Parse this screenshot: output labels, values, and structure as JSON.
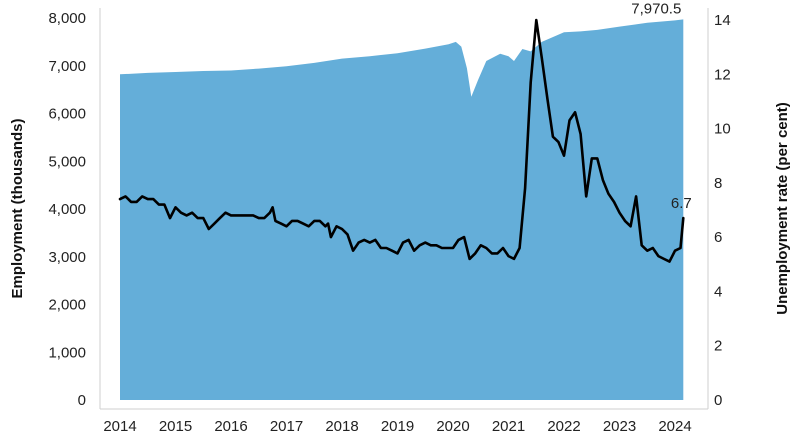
{
  "chart_data": {
    "type": "area+line",
    "title": "",
    "x_ticks": [
      "2014",
      "2015",
      "2016",
      "2017",
      "2018",
      "2019",
      "2020",
      "2021",
      "2022",
      "2023",
      "2024"
    ],
    "y_left": {
      "label": "Employment (thousands)",
      "ticks": [
        "0",
        "1,000",
        "2,000",
        "3,000",
        "4,000",
        "5,000",
        "6,000",
        "7,000",
        "8,000"
      ],
      "range": [
        0,
        8000
      ]
    },
    "y_right": {
      "label": "Unemployment rate (per cent)",
      "ticks": [
        "0",
        "2",
        "4",
        "6",
        "8",
        "10",
        "12",
        "14"
      ],
      "range": [
        0,
        14
      ]
    },
    "x_range": [
      2014.0,
      2024.25
    ],
    "series": [
      {
        "kind": "area",
        "axis": "left",
        "color": "#64aed9",
        "points": [
          [
            2014.0,
            6820
          ],
          [
            2014.5,
            6850
          ],
          [
            2015.0,
            6870
          ],
          [
            2015.5,
            6890
          ],
          [
            2016.0,
            6900
          ],
          [
            2016.5,
            6940
          ],
          [
            2017.0,
            6990
          ],
          [
            2017.5,
            7060
          ],
          [
            2018.0,
            7150
          ],
          [
            2018.5,
            7200
          ],
          [
            2019.0,
            7260
          ],
          [
            2019.5,
            7360
          ],
          [
            2019.92,
            7450
          ],
          [
            2020.05,
            7500
          ],
          [
            2020.15,
            7400
          ],
          [
            2020.25,
            6950
          ],
          [
            2020.33,
            6350
          ],
          [
            2020.45,
            6700
          ],
          [
            2020.6,
            7100
          ],
          [
            2020.85,
            7250
          ],
          [
            2021.0,
            7200
          ],
          [
            2021.1,
            7100
          ],
          [
            2021.25,
            7350
          ],
          [
            2021.4,
            7300
          ],
          [
            2021.6,
            7500
          ],
          [
            2022.0,
            7700
          ],
          [
            2022.3,
            7720
          ],
          [
            2022.6,
            7750
          ],
          [
            2023.0,
            7820
          ],
          [
            2023.5,
            7900
          ],
          [
            2024.0,
            7950
          ],
          [
            2024.15,
            7970.5
          ]
        ],
        "end_label": "7,970.5"
      },
      {
        "kind": "line",
        "axis": "right",
        "color": "#000000",
        "points": [
          [
            2014.0,
            7.4
          ],
          [
            2014.1,
            7.5
          ],
          [
            2014.2,
            7.3
          ],
          [
            2014.3,
            7.3
          ],
          [
            2014.4,
            7.5
          ],
          [
            2014.5,
            7.4
          ],
          [
            2014.6,
            7.4
          ],
          [
            2014.7,
            7.2
          ],
          [
            2014.8,
            7.2
          ],
          [
            2014.9,
            6.7
          ],
          [
            2015.0,
            7.1
          ],
          [
            2015.1,
            6.9
          ],
          [
            2015.2,
            6.8
          ],
          [
            2015.3,
            6.9
          ],
          [
            2015.4,
            6.7
          ],
          [
            2015.5,
            6.7
          ],
          [
            2015.6,
            6.3
          ],
          [
            2015.7,
            6.5
          ],
          [
            2015.8,
            6.7
          ],
          [
            2015.9,
            6.9
          ],
          [
            2016.0,
            6.8
          ],
          [
            2016.2,
            6.8
          ],
          [
            2016.4,
            6.8
          ],
          [
            2016.5,
            6.7
          ],
          [
            2016.6,
            6.7
          ],
          [
            2016.7,
            6.9
          ],
          [
            2016.75,
            7.1
          ],
          [
            2016.8,
            6.6
          ],
          [
            2016.9,
            6.5
          ],
          [
            2017.0,
            6.4
          ],
          [
            2017.1,
            6.6
          ],
          [
            2017.2,
            6.6
          ],
          [
            2017.3,
            6.5
          ],
          [
            2017.4,
            6.4
          ],
          [
            2017.5,
            6.6
          ],
          [
            2017.6,
            6.6
          ],
          [
            2017.7,
            6.4
          ],
          [
            2017.75,
            6.5
          ],
          [
            2017.8,
            6.0
          ],
          [
            2017.9,
            6.4
          ],
          [
            2018.0,
            6.3
          ],
          [
            2018.1,
            6.1
          ],
          [
            2018.2,
            5.5
          ],
          [
            2018.3,
            5.8
          ],
          [
            2018.4,
            5.9
          ],
          [
            2018.5,
            5.8
          ],
          [
            2018.6,
            5.9
          ],
          [
            2018.7,
            5.6
          ],
          [
            2018.8,
            5.6
          ],
          [
            2018.9,
            5.5
          ],
          [
            2019.0,
            5.4
          ],
          [
            2019.1,
            5.8
          ],
          [
            2019.2,
            5.9
          ],
          [
            2019.3,
            5.5
          ],
          [
            2019.4,
            5.7
          ],
          [
            2019.5,
            5.8
          ],
          [
            2019.6,
            5.7
          ],
          [
            2019.7,
            5.7
          ],
          [
            2019.8,
            5.6
          ],
          [
            2019.9,
            5.6
          ],
          [
            2020.0,
            5.6
          ],
          [
            2020.1,
            5.9
          ],
          [
            2020.2,
            6.0
          ],
          [
            2020.3,
            5.2
          ],
          [
            2020.4,
            5.4
          ],
          [
            2020.5,
            5.7
          ],
          [
            2020.6,
            5.6
          ],
          [
            2020.7,
            5.4
          ],
          [
            2020.8,
            5.4
          ],
          [
            2020.9,
            5.6
          ],
          [
            2021.0,
            5.3
          ],
          [
            2021.1,
            5.2
          ],
          [
            2021.2,
            5.6
          ],
          [
            2021.3,
            7.8
          ],
          [
            2021.4,
            11.7
          ],
          [
            2021.5,
            14.0
          ],
          [
            2021.6,
            12.6
          ],
          [
            2021.7,
            11.1
          ],
          [
            2021.8,
            9.7
          ],
          [
            2021.9,
            9.5
          ],
          [
            2022.0,
            9.0
          ],
          [
            2022.1,
            10.3
          ],
          [
            2022.2,
            10.6
          ],
          [
            2022.3,
            9.8
          ],
          [
            2022.4,
            7.5
          ],
          [
            2022.5,
            8.9
          ],
          [
            2022.6,
            8.9
          ],
          [
            2022.7,
            8.1
          ],
          [
            2022.8,
            7.6
          ],
          [
            2022.9,
            7.3
          ],
          [
            2023.0,
            6.9
          ],
          [
            2023.1,
            6.6
          ],
          [
            2023.2,
            6.4
          ],
          [
            2023.3,
            7.5
          ],
          [
            2023.4,
            5.7
          ],
          [
            2023.5,
            5.5
          ],
          [
            2023.6,
            5.6
          ],
          [
            2023.7,
            5.3
          ],
          [
            2023.8,
            5.2
          ],
          [
            2023.9,
            5.1
          ],
          [
            2024.0,
            5.5
          ],
          [
            2024.1,
            5.6
          ],
          [
            2024.15,
            6.7
          ]
        ],
        "end_label": "6.7"
      }
    ],
    "grid": false,
    "legend": "none"
  }
}
